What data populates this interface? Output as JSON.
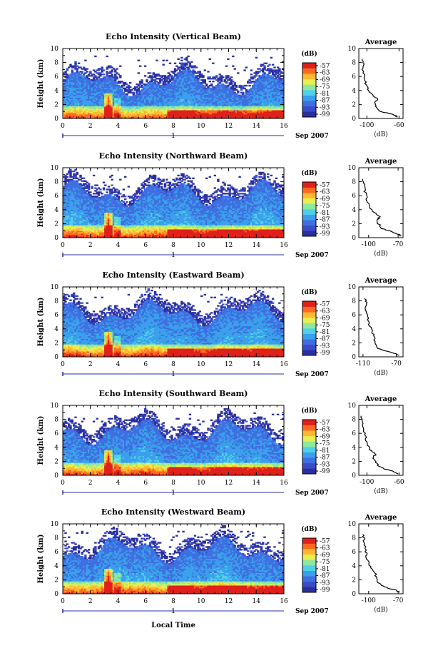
{
  "x_label": "Local Time",
  "date_label": "Sep 2007",
  "date_marker": "1",
  "colorbar_unit": "(dB)",
  "avg_title": "Average",
  "avg_unit": "(dB)",
  "y_label": "Height (km)",
  "x_ticks": [
    "0",
    "2",
    "4",
    "6",
    "8",
    "10",
    "12",
    "14",
    "16"
  ],
  "y_ticks": [
    "0",
    "2",
    "4",
    "6",
    "8",
    "10"
  ],
  "avg_y_ticks": [
    "0",
    "2",
    "4",
    "6",
    "8",
    "10"
  ],
  "colors": [
    "#2a2fa0",
    "#3b4cc8",
    "#3f6fe0",
    "#3aa0ec",
    "#50d0e8",
    "#8ee8a0",
    "#e6ee50",
    "#ffb830",
    "#ff6a20",
    "#e0201a"
  ],
  "chart_data": [
    {
      "type": "heatmap",
      "title": "Echo Intensity (Vertical Beam)",
      "xlim": [
        0,
        16
      ],
      "ylim": [
        0,
        10
      ],
      "colorbar_ticks": [
        "-57",
        "-63",
        "-69",
        "-75",
        "-81",
        "-87",
        "-93",
        "-99"
      ],
      "avg_xticks": [
        "-100",
        "-60"
      ],
      "avg_xlim": [
        -110,
        -55
      ],
      "avg_profile": [
        [
          -62,
          0.2
        ],
        [
          -66,
          0.5
        ],
        [
          -75,
          0.8
        ],
        [
          -84,
          1.0
        ],
        [
          -88,
          1.5
        ],
        [
          -90,
          2.0
        ],
        [
          -89,
          2.5
        ],
        [
          -86,
          2.8
        ],
        [
          -92,
          3.2
        ],
        [
          -97,
          3.8
        ],
        [
          -100,
          4.5
        ],
        [
          -102,
          5.2
        ],
        [
          -103,
          6.0
        ],
        [
          -105,
          7.0
        ],
        [
          -104,
          7.8
        ],
        [
          -106,
          8.5
        ]
      ]
    },
    {
      "type": "heatmap",
      "title": "Echo Intensity (Northward Beam)",
      "xlim": [
        0,
        16
      ],
      "ylim": [
        0,
        10
      ],
      "colorbar_ticks": [
        "-57",
        "-63",
        "-69",
        "-75",
        "-81",
        "-87",
        "-93",
        "-99"
      ],
      "avg_xticks": [
        "-100",
        "-70"
      ],
      "avg_xlim": [
        -110,
        -65
      ],
      "avg_profile": [
        [
          -67,
          0.2
        ],
        [
          -70,
          0.5
        ],
        [
          -78,
          0.9
        ],
        [
          -86,
          1.3
        ],
        [
          -90,
          2.0
        ],
        [
          -91,
          2.6
        ],
        [
          -88,
          3.0
        ],
        [
          -95,
          3.6
        ],
        [
          -99,
          4.4
        ],
        [
          -101,
          5.3
        ],
        [
          -103,
          6.2
        ],
        [
          -104,
          7.0
        ],
        [
          -105,
          7.8
        ],
        [
          -106,
          8.4
        ]
      ]
    },
    {
      "type": "heatmap",
      "title": "Echo Intensity (Eastward Beam)",
      "xlim": [
        0,
        16
      ],
      "ylim": [
        0,
        10
      ],
      "colorbar_ticks": [
        "-57",
        "-63",
        "-69",
        "-75",
        "-81",
        "-87",
        "-93",
        "-99"
      ],
      "avg_xticks": [
        "-110",
        "-70"
      ],
      "avg_xlim": [
        -115,
        -62
      ],
      "avg_profile": [
        [
          -66,
          0.2
        ],
        [
          -72,
          0.5
        ],
        [
          -82,
          0.8
        ],
        [
          -92,
          1.2
        ],
        [
          -96,
          2.0
        ],
        [
          -97,
          2.8
        ],
        [
          -99,
          3.6
        ],
        [
          -102,
          4.4
        ],
        [
          -104,
          5.3
        ],
        [
          -106,
          6.2
        ],
        [
          -107,
          7.0
        ],
        [
          -106,
          7.8
        ],
        [
          -108,
          8.4
        ]
      ]
    },
    {
      "type": "heatmap",
      "title": "Echo Intensity (Southward Beam)",
      "xlim": [
        0,
        16
      ],
      "ylim": [
        0,
        10
      ],
      "colorbar_ticks": [
        "-57",
        "-63",
        "-69",
        "-75",
        "-81",
        "-87",
        "-93",
        "-99"
      ],
      "avg_xticks": [
        "-100",
        "-60"
      ],
      "avg_xlim": [
        -110,
        -55
      ],
      "avg_profile": [
        [
          -62,
          0.2
        ],
        [
          -68,
          0.6
        ],
        [
          -78,
          0.9
        ],
        [
          -86,
          1.4
        ],
        [
          -90,
          2.0
        ],
        [
          -92,
          2.6
        ],
        [
          -89,
          3.0
        ],
        [
          -95,
          3.5
        ],
        [
          -99,
          4.3
        ],
        [
          -101,
          5.2
        ],
        [
          -103,
          6.0
        ],
        [
          -105,
          7.0
        ],
        [
          -106,
          7.8
        ],
        [
          -107,
          8.5
        ]
      ]
    },
    {
      "type": "heatmap",
      "title": "Echo Intensity (Westward Beam)",
      "xlim": [
        0,
        16
      ],
      "ylim": [
        0,
        10
      ],
      "colorbar_ticks": [
        "-57",
        "-63",
        "-69",
        "-75",
        "-81",
        "-87",
        "-93",
        "-99"
      ],
      "avg_xticks": [
        "-100",
        "-70"
      ],
      "avg_xlim": [
        -110,
        -65
      ],
      "avg_profile": [
        [
          -68,
          0.2
        ],
        [
          -72,
          0.5
        ],
        [
          -80,
          0.8
        ],
        [
          -88,
          1.2
        ],
        [
          -92,
          2.0
        ],
        [
          -93,
          2.8
        ],
        [
          -96,
          3.5
        ],
        [
          -100,
          4.3
        ],
        [
          -102,
          5.2
        ],
        [
          -103,
          6.0
        ],
        [
          -104,
          7.0
        ],
        [
          -105,
          7.8
        ],
        [
          -106,
          8.5
        ]
      ]
    }
  ]
}
